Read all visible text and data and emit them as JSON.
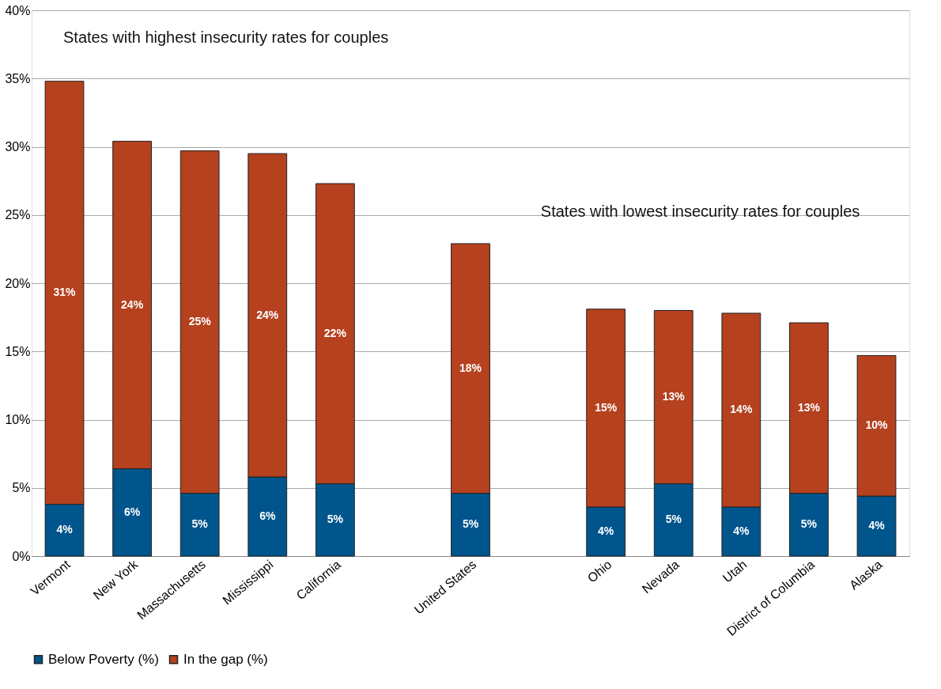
{
  "chart_data": {
    "type": "bar",
    "stacked": true,
    "categories": [
      "Vermont",
      "New York",
      "Massachusetts",
      "Mississippi",
      "California",
      null,
      "United States",
      null,
      "Ohio",
      "Nevada",
      "Utah",
      "District of Columbia",
      "Alaska"
    ],
    "series": [
      {
        "name": "Below Poverty (%)",
        "color": "#00558c",
        "values": [
          3.8,
          6.4,
          4.6,
          5.8,
          5.3,
          null,
          4.6,
          null,
          3.6,
          5.3,
          3.6,
          4.6,
          4.4
        ],
        "value_labels": [
          "4%",
          "6%",
          "5%",
          "6%",
          "5%",
          null,
          "5%",
          null,
          "4%",
          "5%",
          "4%",
          "5%",
          "4%"
        ]
      },
      {
        "name": "In the gap (%)",
        "color": "#b5411e",
        "values": [
          31.0,
          24.0,
          25.1,
          23.7,
          22.0,
          null,
          18.3,
          null,
          14.5,
          12.7,
          14.2,
          12.5,
          10.3
        ],
        "value_labels": [
          "31%",
          "24%",
          "25%",
          "24%",
          "22%",
          null,
          "18%",
          null,
          "15%",
          "13%",
          "14%",
          "13%",
          "10%"
        ]
      }
    ],
    "ylim": [
      0,
      40
    ],
    "yticks": [
      {
        "value": 0,
        "label": "0%"
      },
      {
        "value": 5,
        "label": "5%"
      },
      {
        "value": 10,
        "label": "10%"
      },
      {
        "value": 15,
        "label": "15%"
      },
      {
        "value": 20,
        "label": "20%"
      },
      {
        "value": 25,
        "label": "25%"
      },
      {
        "value": 30,
        "label": "30%"
      },
      {
        "value": 35,
        "label": "35%"
      },
      {
        "value": 40,
        "label": "40%"
      }
    ],
    "grid": "y",
    "legend": "bottom",
    "annotations": [
      "States with highest insecurity rates for couples",
      "States with lowest insecurity rates for couples"
    ]
  }
}
